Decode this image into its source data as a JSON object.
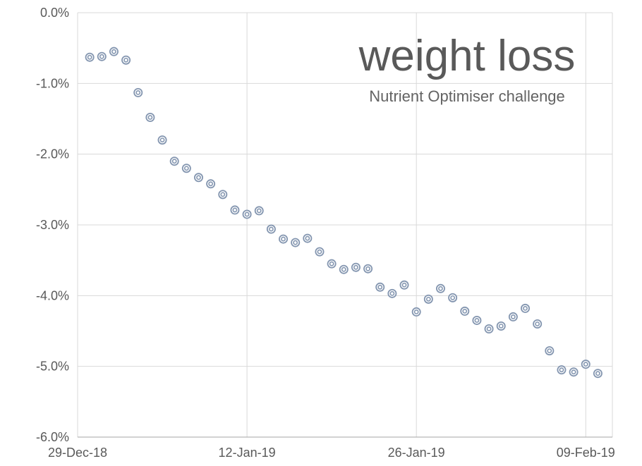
{
  "colors": {
    "marker": "#8496b0",
    "grid": "#d9d9d9",
    "axis": "#a6a6a6",
    "text": "#595959"
  },
  "chart_data": {
    "type": "scatter",
    "title": "weight loss",
    "subtitle": "Nutrient Optimiser challenge",
    "xlabel": "",
    "ylabel": "",
    "grid": true,
    "legend": false,
    "ylim": [
      -6,
      0
    ],
    "xlim_days": [
      0,
      44.2
    ],
    "y_ticks": [
      {
        "label": "0.0%",
        "value": 0
      },
      {
        "label": "-1.0%",
        "value": -1
      },
      {
        "label": "-2.0%",
        "value": -2
      },
      {
        "label": "-3.0%",
        "value": -3
      },
      {
        "label": "-4.0%",
        "value": -4
      },
      {
        "label": "-5.0%",
        "value": -5
      },
      {
        "label": "-6.0%",
        "value": -6
      }
    ],
    "x_ticks": [
      {
        "label": "29-Dec-18",
        "day": 0
      },
      {
        "label": "12-Jan-19",
        "day": 14
      },
      {
        "label": "26-Jan-19",
        "day": 28
      },
      {
        "label": "09-Feb-19",
        "day": 42
      }
    ],
    "points": [
      {
        "date": "30-Dec-18",
        "day": 1,
        "pct": -0.63
      },
      {
        "date": "31-Dec-18",
        "day": 2,
        "pct": -0.62
      },
      {
        "date": "01-Jan-19",
        "day": 3,
        "pct": -0.55
      },
      {
        "date": "02-Jan-19",
        "day": 4,
        "pct": -0.67
      },
      {
        "date": "03-Jan-19",
        "day": 5,
        "pct": -1.13
      },
      {
        "date": "04-Jan-19",
        "day": 6,
        "pct": -1.48
      },
      {
        "date": "05-Jan-19",
        "day": 7,
        "pct": -1.8
      },
      {
        "date": "06-Jan-19",
        "day": 8,
        "pct": -2.1
      },
      {
        "date": "07-Jan-19",
        "day": 9,
        "pct": -2.2
      },
      {
        "date": "08-Jan-19",
        "day": 10,
        "pct": -2.33
      },
      {
        "date": "09-Jan-19",
        "day": 11,
        "pct": -2.42
      },
      {
        "date": "10-Jan-19",
        "day": 12,
        "pct": -2.57
      },
      {
        "date": "11-Jan-19",
        "day": 13,
        "pct": -2.79
      },
      {
        "date": "12-Jan-19",
        "day": 14,
        "pct": -2.85
      },
      {
        "date": "13-Jan-19",
        "day": 15,
        "pct": -2.8
      },
      {
        "date": "14-Jan-19",
        "day": 16,
        "pct": -3.06
      },
      {
        "date": "15-Jan-19",
        "day": 17,
        "pct": -3.2
      },
      {
        "date": "16-Jan-19",
        "day": 18,
        "pct": -3.25
      },
      {
        "date": "17-Jan-19",
        "day": 19,
        "pct": -3.19
      },
      {
        "date": "18-Jan-19",
        "day": 20,
        "pct": -3.38
      },
      {
        "date": "19-Jan-19",
        "day": 21,
        "pct": -3.55
      },
      {
        "date": "20-Jan-19",
        "day": 22,
        "pct": -3.63
      },
      {
        "date": "21-Jan-19",
        "day": 23,
        "pct": -3.6
      },
      {
        "date": "22-Jan-19",
        "day": 24,
        "pct": -3.62
      },
      {
        "date": "23-Jan-19",
        "day": 25,
        "pct": -3.88
      },
      {
        "date": "24-Jan-19",
        "day": 26,
        "pct": -3.97
      },
      {
        "date": "25-Jan-19",
        "day": 27,
        "pct": -3.85
      },
      {
        "date": "26-Jan-19",
        "day": 28,
        "pct": -4.23
      },
      {
        "date": "27-Jan-19",
        "day": 29,
        "pct": -4.05
      },
      {
        "date": "28-Jan-19",
        "day": 30,
        "pct": -3.9
      },
      {
        "date": "29-Jan-19",
        "day": 31,
        "pct": -4.03
      },
      {
        "date": "30-Jan-19",
        "day": 32,
        "pct": -4.22
      },
      {
        "date": "31-Jan-19",
        "day": 33,
        "pct": -4.35
      },
      {
        "date": "01-Feb-19",
        "day": 34,
        "pct": -4.47
      },
      {
        "date": "02-Feb-19",
        "day": 35,
        "pct": -4.43
      },
      {
        "date": "03-Feb-19",
        "day": 36,
        "pct": -4.3
      },
      {
        "date": "04-Feb-19",
        "day": 37,
        "pct": -4.18
      },
      {
        "date": "05-Feb-19",
        "day": 38,
        "pct": -4.4
      },
      {
        "date": "06-Feb-19",
        "day": 39,
        "pct": -4.78
      },
      {
        "date": "07-Feb-19",
        "day": 40,
        "pct": -5.05
      },
      {
        "date": "08-Feb-19",
        "day": 41,
        "pct": -5.08
      },
      {
        "date": "09-Feb-19",
        "day": 42,
        "pct": -4.97
      },
      {
        "date": "10-Feb-19",
        "day": 43,
        "pct": -5.1
      }
    ]
  }
}
